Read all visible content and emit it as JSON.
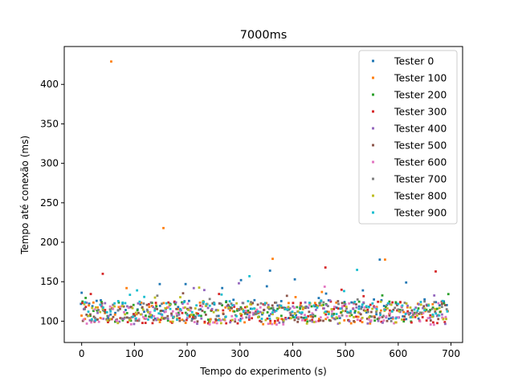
{
  "chart_data": {
    "type": "scatter",
    "title": "7000ms",
    "xlabel": "Tempo do experimento (s)",
    "ylabel": "Tempo até conexão (ms)",
    "xlim": [
      -33,
      722
    ],
    "ylim": [
      73,
      448
    ],
    "xticks": [
      0,
      100,
      200,
      300,
      400,
      500,
      600,
      700
    ],
    "yticks": [
      100,
      150,
      200,
      250,
      300,
      350,
      400
    ],
    "grid": false,
    "legend_position": "top-right",
    "seed": 7000,
    "outliers": [
      {
        "series": 1,
        "x": 56,
        "y": 429
      },
      {
        "series": 1,
        "x": 155,
        "y": 218
      },
      {
        "series": 3,
        "x": 40,
        "y": 160
      },
      {
        "series": 4,
        "x": 298,
        "y": 148
      },
      {
        "series": 0,
        "x": 302,
        "y": 152
      },
      {
        "series": 9,
        "x": 318,
        "y": 157
      },
      {
        "series": 0,
        "x": 357,
        "y": 164
      },
      {
        "series": 1,
        "x": 362,
        "y": 179
      },
      {
        "series": 0,
        "x": 404,
        "y": 153
      },
      {
        "series": 3,
        "x": 462,
        "y": 168
      },
      {
        "series": 9,
        "x": 522,
        "y": 165
      },
      {
        "series": 0,
        "x": 565,
        "y": 178
      },
      {
        "series": 1,
        "x": 575,
        "y": 178
      },
      {
        "series": 0,
        "x": 615,
        "y": 149
      },
      {
        "series": 3,
        "x": 671,
        "y": 163
      },
      {
        "series": 0,
        "x": 0,
        "y": 136
      },
      {
        "series": 0,
        "x": 148,
        "y": 147
      },
      {
        "series": 0,
        "x": 197,
        "y": 147
      },
      {
        "series": 9,
        "x": 105,
        "y": 139
      },
      {
        "series": 0,
        "x": 533,
        "y": 139
      }
    ],
    "series": [
      {
        "name": "Tester 0",
        "color": "#1f77b4",
        "x_step": 7,
        "y_center": 115,
        "y_spread": 13
      },
      {
        "name": "Tester 100",
        "color": "#ff7f0e",
        "x_step": 7,
        "y_center": 110,
        "y_spread": 14
      },
      {
        "name": "Tester 200",
        "color": "#2ca02c",
        "x_step": 7,
        "y_center": 112,
        "y_spread": 13
      },
      {
        "name": "Tester 300",
        "color": "#d62728",
        "x_step": 7,
        "y_center": 111,
        "y_spread": 14
      },
      {
        "name": "Tester 400",
        "color": "#9467bd",
        "x_step": 7,
        "y_center": 110,
        "y_spread": 14
      },
      {
        "name": "Tester 500",
        "color": "#8c564b",
        "x_step": 7,
        "y_center": 112,
        "y_spread": 13
      },
      {
        "name": "Tester 600",
        "color": "#e377c2",
        "x_step": 7,
        "y_center": 109,
        "y_spread": 14
      },
      {
        "name": "Tester 700",
        "color": "#7f7f7f",
        "x_step": 7,
        "y_center": 112,
        "y_spread": 13
      },
      {
        "name": "Tester 800",
        "color": "#bcbd22",
        "x_step": 7,
        "y_center": 110,
        "y_spread": 13
      },
      {
        "name": "Tester 900",
        "color": "#17becf",
        "x_step": 7,
        "y_center": 113,
        "y_spread": 13
      }
    ]
  }
}
